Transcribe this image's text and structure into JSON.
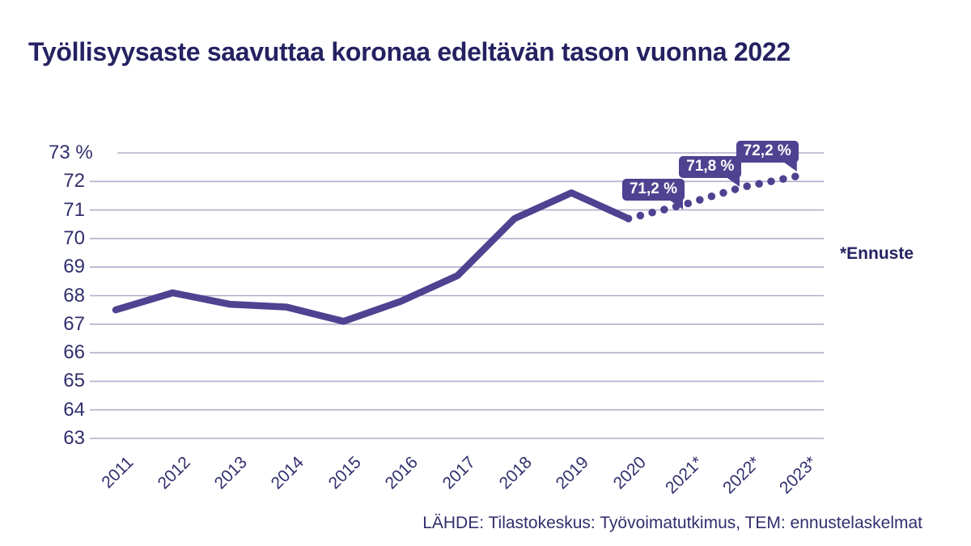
{
  "title": "Työllisyysaste saavuttaa koronaa edeltävän tason vuonna 2022",
  "forecast_note": "*Ennuste",
  "source": "LÄHDE: Tilastokeskus: Työvoimatutkimus, TEM: ennustelaskelmat",
  "colors": {
    "line": "#4f4291",
    "gridline": "#b3adcc",
    "text_dark": "#252262",
    "axis_text": "#312f6d",
    "callout_bg": "#4f4291",
    "callout_text": "#ffffff",
    "background": "#ffffff"
  },
  "chart_data": {
    "type": "line",
    "title": "Työllisyysaste saavuttaa koronaa edeltävän tason vuonna 2022",
    "unit": "%",
    "grid": true,
    "legend": "none",
    "ylim": [
      63,
      73
    ],
    "y_tick_labels": [
      "73 %",
      "72",
      "71",
      "70",
      "69",
      "68",
      "67",
      "66",
      "65",
      "64",
      "63"
    ],
    "y_tick_values": [
      73,
      72,
      71,
      70,
      69,
      68,
      67,
      66,
      65,
      64,
      63
    ],
    "categories": [
      "2011",
      "2012",
      "2013",
      "2014",
      "2015",
      "2016",
      "2017",
      "2018",
      "2019",
      "2020",
      "2021*",
      "2022*",
      "2023*"
    ],
    "series": [
      {
        "name": "observed",
        "style": "solid",
        "category_start_index": 0,
        "values": [
          67.5,
          68.1,
          67.7,
          67.6,
          67.1,
          67.8,
          68.7,
          70.7,
          71.6,
          70.7
        ]
      },
      {
        "name": "forecast",
        "style": "dotted",
        "category_start_index": 9,
        "values": [
          70.7,
          71.2,
          71.8,
          72.2
        ]
      }
    ],
    "annotations": [
      {
        "category": "2021*",
        "value": 71.2,
        "label": "71,2 %"
      },
      {
        "category": "2022*",
        "value": 71.8,
        "label": "71,8 %"
      },
      {
        "category": "2023*",
        "value": 72.2,
        "label": "72,2 %"
      }
    ]
  }
}
